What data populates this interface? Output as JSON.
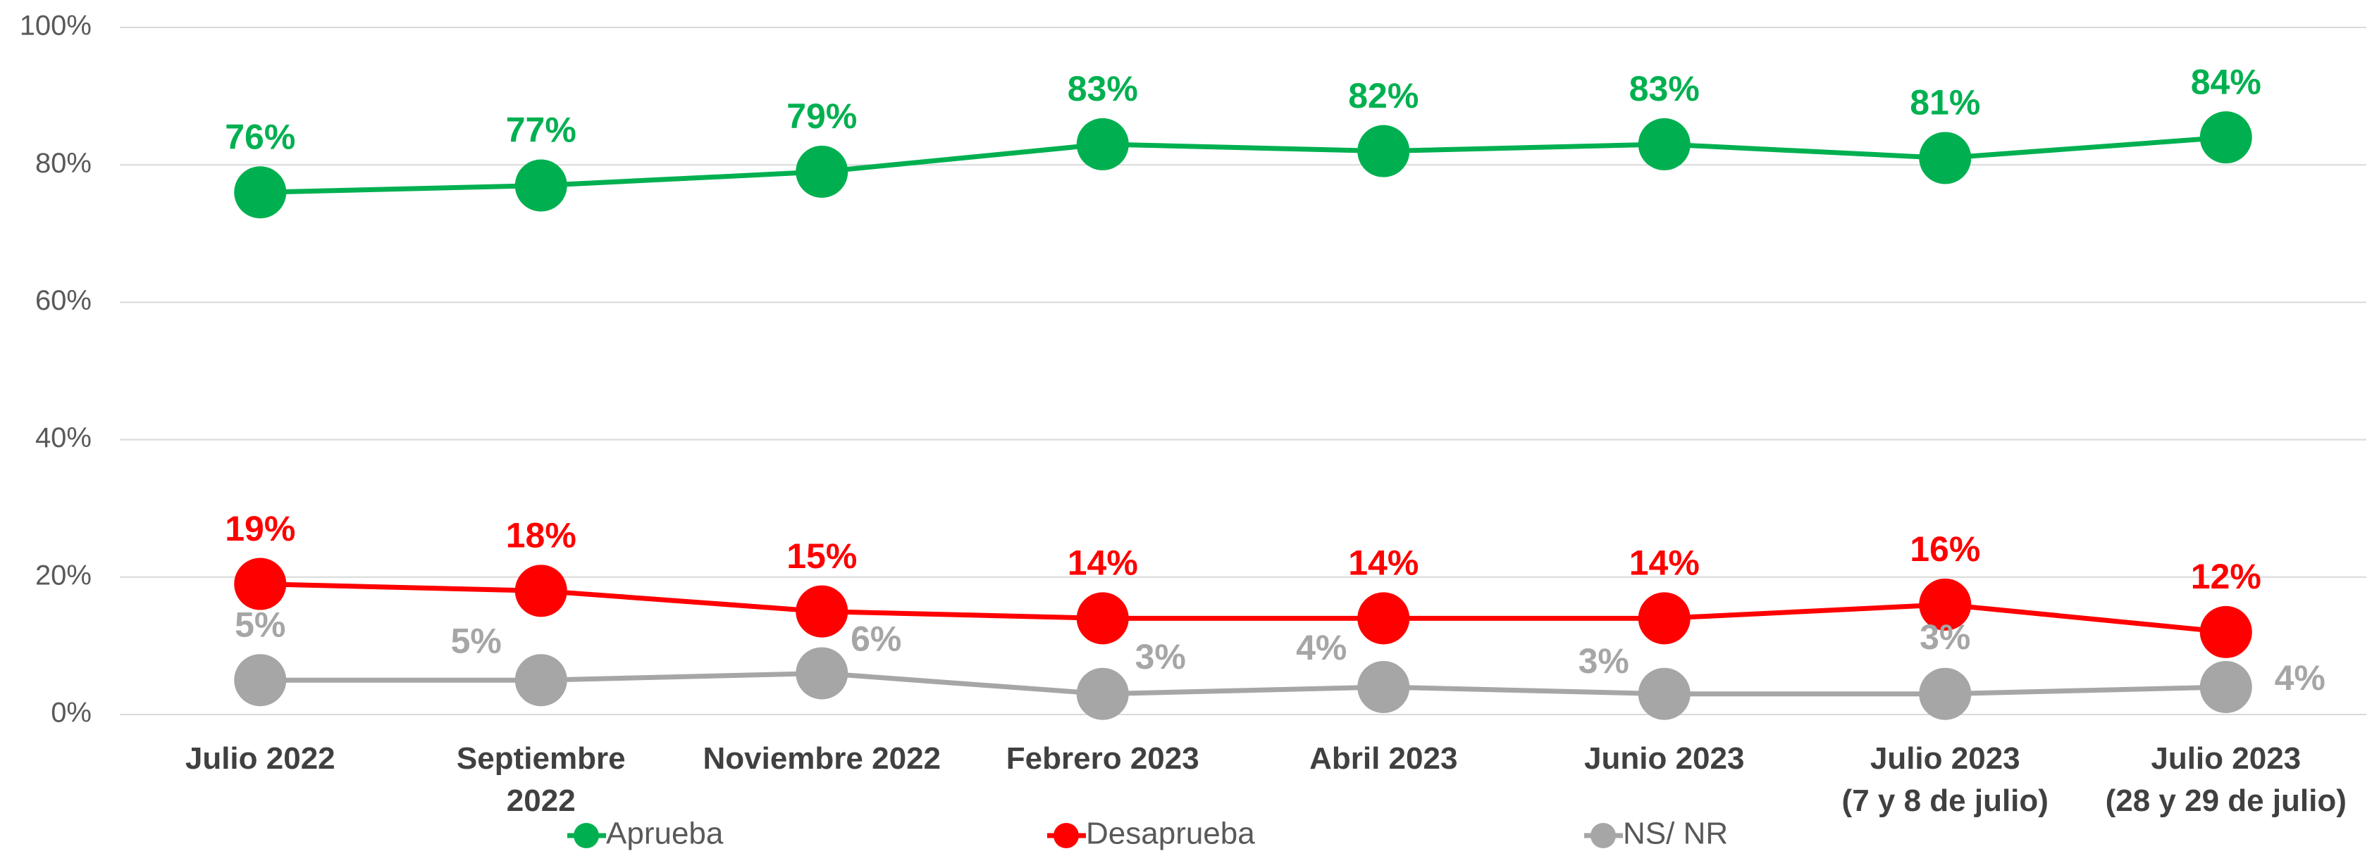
{
  "chart_data": {
    "type": "line",
    "categories": [
      "Julio 2022",
      "Septiembre\n2022",
      "Noviembre 2022",
      "Febrero 2023",
      "Abril 2023",
      "Junio 2023",
      "Julio 2023\n(7 y 8 de julio)",
      "Julio 2023\n(28 y 29 de julio)"
    ],
    "series": [
      {
        "name": "Aprueba",
        "color": "#00b050",
        "values": [
          76,
          77,
          79,
          83,
          82,
          83,
          81,
          84
        ],
        "value_labels": [
          "76%",
          "77%",
          "79%",
          "83%",
          "82%",
          "83%",
          "81%",
          "84%"
        ]
      },
      {
        "name": "Desaprueba",
        "color": "#ff0000",
        "values": [
          19,
          18,
          15,
          14,
          14,
          14,
          16,
          12
        ],
        "value_labels": [
          "19%",
          "18%",
          "15%",
          "14%",
          "14%",
          "14%",
          "16%",
          "12%"
        ]
      },
      {
        "name": "NS/ NR",
        "color": "#a6a6a6",
        "values": [
          5,
          5,
          6,
          3,
          4,
          3,
          3,
          4
        ],
        "value_labels": [
          "5%",
          "5%",
          "6%",
          "3%",
          "4%",
          "3%",
          "3%",
          "4%"
        ]
      }
    ],
    "ylim": [
      0,
      100
    ],
    "yticks": [
      {
        "value": 0,
        "label": "0%"
      },
      {
        "value": 20,
        "label": "20%"
      },
      {
        "value": 40,
        "label": "40%"
      },
      {
        "value": 60,
        "label": "60%"
      },
      {
        "value": 80,
        "label": "80%"
      },
      {
        "value": 100,
        "label": "100%"
      }
    ],
    "grid": true,
    "legend": "bottom"
  }
}
